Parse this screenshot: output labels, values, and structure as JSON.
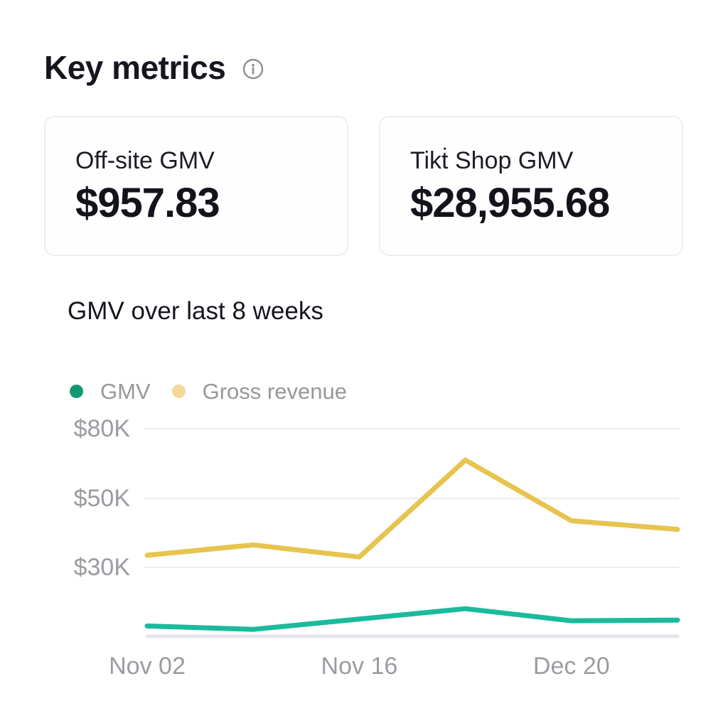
{
  "header": {
    "title": "Key metrics",
    "info_icon": "info-circle"
  },
  "cards": [
    {
      "title": "Off-site GMV",
      "value": "$957.83"
    },
    {
      "title": "Tikṫ Shop GMV",
      "value": "$28,955.68"
    }
  ],
  "chart_data": {
    "type": "line",
    "title": "GMV over last 8 weeks",
    "series": [
      {
        "name": "GMV",
        "color": "#1aba9d",
        "legend_dot_color": "#0f9a73",
        "values": [
          13000,
          12000,
          15000,
          18000,
          14500,
          14700
        ]
      },
      {
        "name": "Gross revenue",
        "color": "#e7c44f",
        "legend_dot_color": "#f3d89b",
        "values": [
          33500,
          36500,
          33000,
          66500,
          43500,
          41000
        ]
      }
    ],
    "x_tick_labels": [
      {
        "index": 0,
        "label": "Nov 02"
      },
      {
        "index": 2,
        "label": "Nov 16"
      },
      {
        "index": 4,
        "label": "Dec 20"
      }
    ],
    "y_ticks": [
      {
        "label": "$80K",
        "value": 80000
      },
      {
        "label": "$50K",
        "value": 50000
      },
      {
        "label": "$30K",
        "value": 30000
      }
    ],
    "axis_text_color": "#9b9ba1",
    "grid": true,
    "legend_position": "top-left"
  }
}
